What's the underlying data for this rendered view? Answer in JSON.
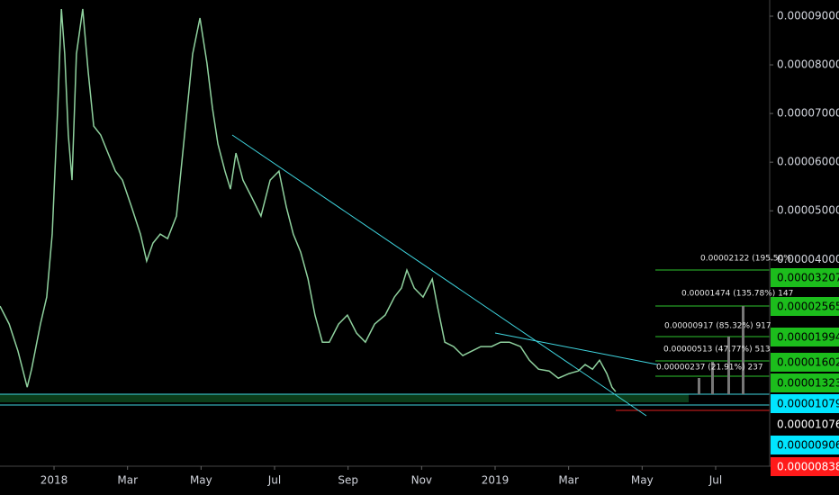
{
  "chart_data": {
    "type": "line",
    "color": "#8fd19e",
    "x": [
      -1.47,
      -1.22,
      -0.98,
      -0.73,
      -0.61,
      -0.37,
      -0.2,
      -0.05,
      0.1,
      0.2,
      0.29,
      0.39,
      0.49,
      0.61,
      0.78,
      0.93,
      1.08,
      1.27,
      1.47,
      1.67,
      1.86,
      2.11,
      2.35,
      2.52,
      2.69,
      2.89,
      3.09,
      3.33,
      3.55,
      3.77,
      3.97,
      4.16,
      4.31,
      4.46,
      4.65,
      4.8,
      4.95,
      5.14,
      5.39,
      5.63,
      5.88,
      6.12,
      6.32,
      6.51,
      6.71,
      6.91,
      7.1,
      7.3,
      7.49,
      7.74,
      7.98,
      8.23,
      8.47,
      8.72,
      9.01,
      9.26,
      9.45,
      9.6,
      9.8,
      10.04,
      10.29,
      10.43,
      10.63,
      10.87,
      11.12,
      11.36,
      11.61,
      11.9,
      12.15,
      12.39,
      12.69,
      12.93,
      13.18,
      13.47,
      13.72,
      14.01,
      14.26,
      14.45,
      14.65,
      14.84,
      15.04,
      15.18,
      15.28
    ],
    "values": [
      3.041e-05,
      2.671e-05,
      2.115e-05,
      1.375e-05,
      1.745e-05,
      2.671e-05,
      3.226e-05,
      4.521e-05,
      7.112e-05,
      9.148e-05,
      8.223e-05,
      6.557e-05,
      5.632e-05,
      8.223e-05,
      9.148e-05,
      7.852e-05,
      6.742e-05,
      6.557e-05,
      6.187e-05,
      5.817e-05,
      5.632e-05,
      5.076e-05,
      4.521e-05,
      3.966e-05,
      4.336e-05,
      4.521e-05,
      4.429e-05,
      4.891e-05,
      6.557e-05,
      8.223e-05,
      8.963e-05,
      8.037e-05,
      7.112e-05,
      6.372e-05,
      5.817e-05,
      5.447e-05,
      6.187e-05,
      5.632e-05,
      5.261e-05,
      4.891e-05,
      5.632e-05,
      5.817e-05,
      5.076e-05,
      4.521e-05,
      4.151e-05,
      3.596e-05,
      2.856e-05,
      2.3e-05,
      2.3e-05,
      2.671e-05,
      2.856e-05,
      2.485e-05,
      2.3e-05,
      2.671e-05,
      2.856e-05,
      3.226e-05,
      3.411e-05,
      3.781e-05,
      3.411e-05,
      3.226e-05,
      3.596e-05,
      3.041e-05,
      2.3e-05,
      2.208e-05,
      2.023e-05,
      2.115e-05,
      2.208e-05,
      2.208e-05,
      2.3e-05,
      2.3e-05,
      2.208e-05,
      1.93e-05,
      1.745e-05,
      1.708e-05,
      1.56e-05,
      1.653e-05,
      1.708e-05,
      1.838e-05,
      1.745e-05,
      1.93e-05,
      1.653e-05,
      1.375e-05,
      1.282e-05
    ],
    "xlim": [
      -1.47,
      19.47
    ],
    "xticks": [
      {
        "value": 0,
        "label": "2018"
      },
      {
        "value": 2,
        "label": "Mar"
      },
      {
        "value": 4,
        "label": "May"
      },
      {
        "value": 6,
        "label": "Jul"
      },
      {
        "value": 8,
        "label": "Sep"
      },
      {
        "value": 10,
        "label": "Nov"
      },
      {
        "value": 12,
        "label": "2019"
      },
      {
        "value": 14,
        "label": "Mar"
      },
      {
        "value": 16,
        "label": "May"
      },
      {
        "value": 18,
        "label": "Jul"
      }
    ],
    "ylim": [
      -2.5e-06,
      9.333e-05
    ],
    "yticks": [
      {
        "value": 9e-05,
        "label": "0.00009000"
      },
      {
        "value": 8e-05,
        "label": "0.00008000"
      },
      {
        "value": 7e-05,
        "label": "0.00007000"
      },
      {
        "value": 6e-05,
        "label": "0.00006000"
      },
      {
        "value": 5e-05,
        "label": "0.00005000"
      },
      {
        "value": 4e-05,
        "label": "0.00004000"
      }
    ],
    "price_labels": [
      {
        "value": 3.207e-05,
        "label": "0.00003207",
        "color": "#1cbd1c"
      },
      {
        "value": 2.565e-05,
        "label": "0.00002565",
        "color": "#1cbd1c"
      },
      {
        "value": 1.994e-05,
        "label": "0.00001994",
        "color": "#1cbd1c"
      },
      {
        "value": 1.602e-05,
        "label": "0.00001602",
        "color": "#1cbd1c"
      },
      {
        "value": 1.323e-05,
        "label": "0.00001323",
        "color": "#1cbd1c"
      },
      {
        "value": 1.079e-05,
        "label": "0.00001079",
        "color": "#00e5ff"
      },
      {
        "value": 1.076e-05,
        "label": "0.00001076",
        "color": "#000000"
      },
      {
        "value": 9.06e-06,
        "label": "0.00000906",
        "color": "#00e5ff"
      },
      {
        "value": 8.38e-06,
        "label": "0.00000838",
        "color": "#ff1a1a"
      }
    ],
    "annotations": [
      "0.00002122 (195.50%",
      "0.00001474 (135.78%) 147",
      "0.00000917 (85.32%) 917",
      "0.00000513 (47.77%) 513",
      "0.00000237 (21.91%) 237"
    ]
  }
}
